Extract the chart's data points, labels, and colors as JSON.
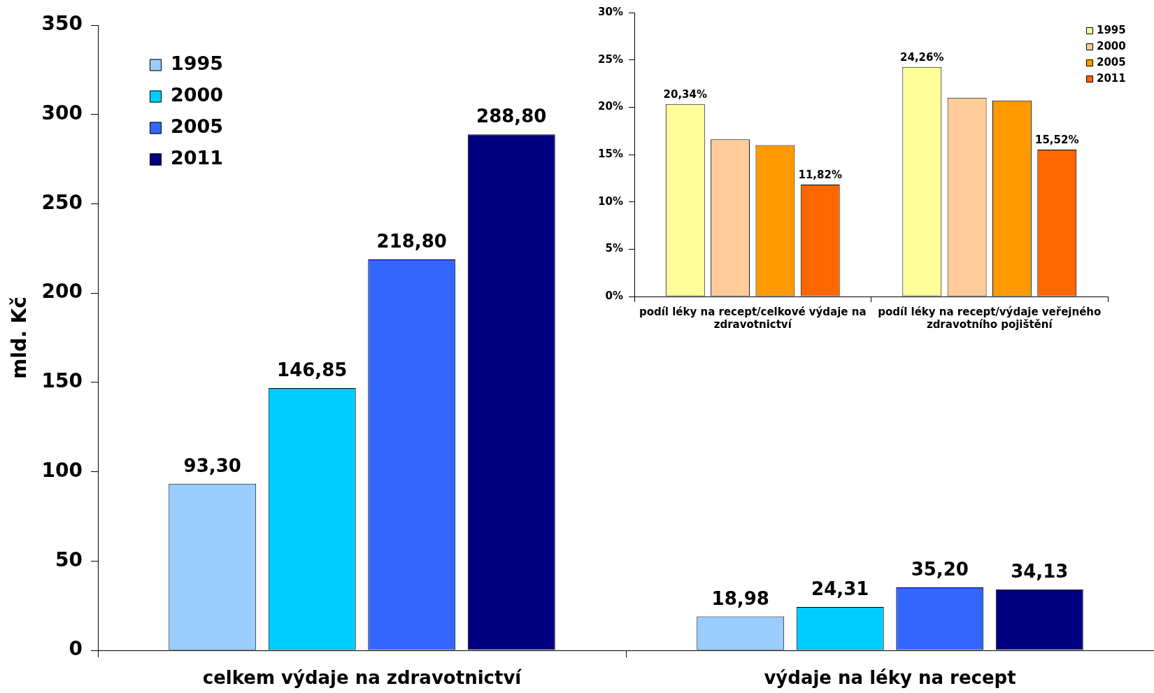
{
  "chart_data": [
    {
      "type": "bar",
      "ylabel": "mld. Kč",
      "categories": [
        "celkem výdaje na zdravotnictví",
        "výdaje na léky na recept"
      ],
      "series": [
        {
          "name": "1995",
          "color": "#99ccff",
          "values": [
            93.3,
            18.98
          ],
          "value_labels": [
            "93,30",
            "18,98"
          ]
        },
        {
          "name": "2000",
          "color": "#00ccff",
          "values": [
            146.85,
            24.31
          ],
          "value_labels": [
            "146,85",
            "24,31"
          ]
        },
        {
          "name": "2005",
          "color": "#3366ff",
          "values": [
            218.8,
            35.2
          ],
          "value_labels": [
            "218,80",
            "35,20"
          ]
        },
        {
          "name": "2011",
          "color": "#000080",
          "values": [
            288.8,
            34.13
          ],
          "value_labels": [
            "288,80",
            "34,13"
          ]
        }
      ],
      "ylim": [
        0,
        350
      ],
      "yticks": [
        0,
        50,
        100,
        150,
        200,
        250,
        300,
        350
      ],
      "legend": "top left"
    },
    {
      "type": "bar",
      "categories": [
        "podíl léky na recept/celkové výdaje na zdravotnictví",
        "podíl léky na recept/výdaje veřejného zdravotního pojištění"
      ],
      "series": [
        {
          "name": "1995",
          "color": "#ffff99",
          "values": [
            20.34,
            24.26
          ],
          "value_labels": [
            "20,34%",
            "24,26%"
          ]
        },
        {
          "name": "2000",
          "color": "#ffcc99",
          "values": [
            16.6,
            21.0
          ]
        },
        {
          "name": "2005",
          "color": "#ff9900",
          "values": [
            16.0,
            20.7
          ]
        },
        {
          "name": "2011",
          "color": "#ff6600",
          "values": [
            11.82,
            15.52
          ],
          "value_labels": [
            "11,82%",
            "15,52%"
          ]
        }
      ],
      "ylim": [
        0,
        30
      ],
      "yticks": [
        {
          "value": 0,
          "label": "0%"
        },
        {
          "value": 5,
          "label": "5%"
        },
        {
          "value": 10,
          "label": "10%"
        },
        {
          "value": 15,
          "label": "15%"
        },
        {
          "value": 20,
          "label": "20%"
        },
        {
          "value": 25,
          "label": "25%"
        },
        {
          "value": 30,
          "label": "30%"
        }
      ],
      "legend": "top right"
    }
  ]
}
